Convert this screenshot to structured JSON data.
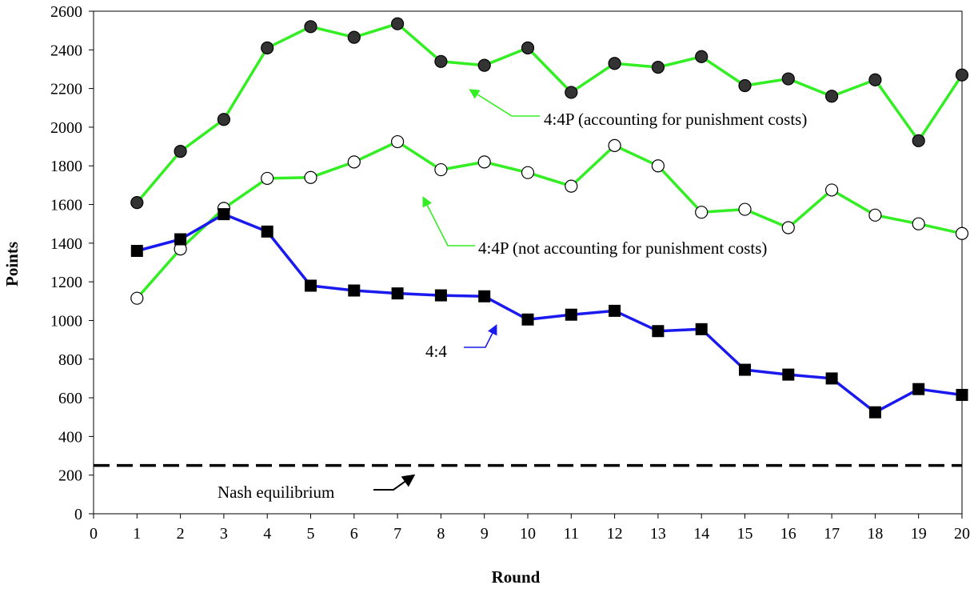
{
  "chart_data": {
    "type": "line",
    "xlabel": "Round",
    "ylabel": "Points",
    "xlim": [
      0,
      20
    ],
    "ylim": [
      0,
      2600
    ],
    "x_ticks": [
      "0",
      "1",
      "2",
      "3",
      "4",
      "5",
      "6",
      "7",
      "8",
      "9",
      "10",
      "11",
      "12",
      "13",
      "14",
      "15",
      "16",
      "17",
      "18",
      "19",
      "20"
    ],
    "y_ticks": [
      "0",
      "200",
      "400",
      "600",
      "800",
      "1000",
      "1200",
      "1400",
      "1600",
      "1800",
      "2000",
      "2200",
      "2400",
      "2600"
    ],
    "grid": false,
    "legend": "none",
    "x": [
      1,
      2,
      3,
      4,
      5,
      6,
      7,
      8,
      9,
      10,
      11,
      12,
      13,
      14,
      15,
      16,
      17,
      18,
      19,
      20
    ],
    "series": [
      {
        "name": "4:4P (accounting for punishment costs)",
        "line_color": "#33ee22",
        "marker": "filled-circle",
        "marker_color": "#333333",
        "values": [
          1610,
          1875,
          2040,
          2410,
          2520,
          2465,
          2535,
          2340,
          2320,
          2410,
          2180,
          2330,
          2310,
          2365,
          2215,
          2250,
          2160,
          2245,
          1930,
          2270
        ]
      },
      {
        "name": "4:4P (not accounting for punishment costs)",
        "line_color": "#33ee22",
        "marker": "open-circle",
        "marker_color": "#ffffff",
        "values": [
          1115,
          1370,
          1580,
          1735,
          1740,
          1820,
          1925,
          1780,
          1820,
          1765,
          1695,
          1905,
          1800,
          1560,
          1575,
          1480,
          1675,
          1545,
          1500,
          1450
        ]
      },
      {
        "name": "4:4",
        "line_color": "#1a1aee",
        "marker": "filled-square",
        "marker_color": "#000000",
        "values": [
          1360,
          1420,
          1550,
          1460,
          1180,
          1155,
          1140,
          1130,
          1125,
          1005,
          1030,
          1050,
          945,
          955,
          745,
          720,
          700,
          525,
          645,
          615
        ]
      }
    ],
    "reference_lines": [
      {
        "label": "Nash equilibrium",
        "y": 250,
        "style": "dashed",
        "color": "#000000"
      }
    ],
    "annotations": [
      {
        "text": "4:4P (accounting for punishment costs)",
        "color": "#000000",
        "arrow_color": "#33ee22",
        "points_to_x": 8.8,
        "points_to_y": 2200
      },
      {
        "text": "4:4P (not accounting for punishment costs)",
        "color": "#000000",
        "arrow_color": "#33ee22",
        "points_to_x": 7.7,
        "points_to_y": 1650
      },
      {
        "text": "4:4",
        "color": "#000000",
        "arrow_color": "#1a1aee",
        "points_to_x": 9.3,
        "points_to_y": 980
      },
      {
        "text": "Nash equilibrium",
        "color": "#000000",
        "arrow_color": "#000000",
        "points_to_x": 7.4,
        "points_to_y": 235
      }
    ]
  }
}
